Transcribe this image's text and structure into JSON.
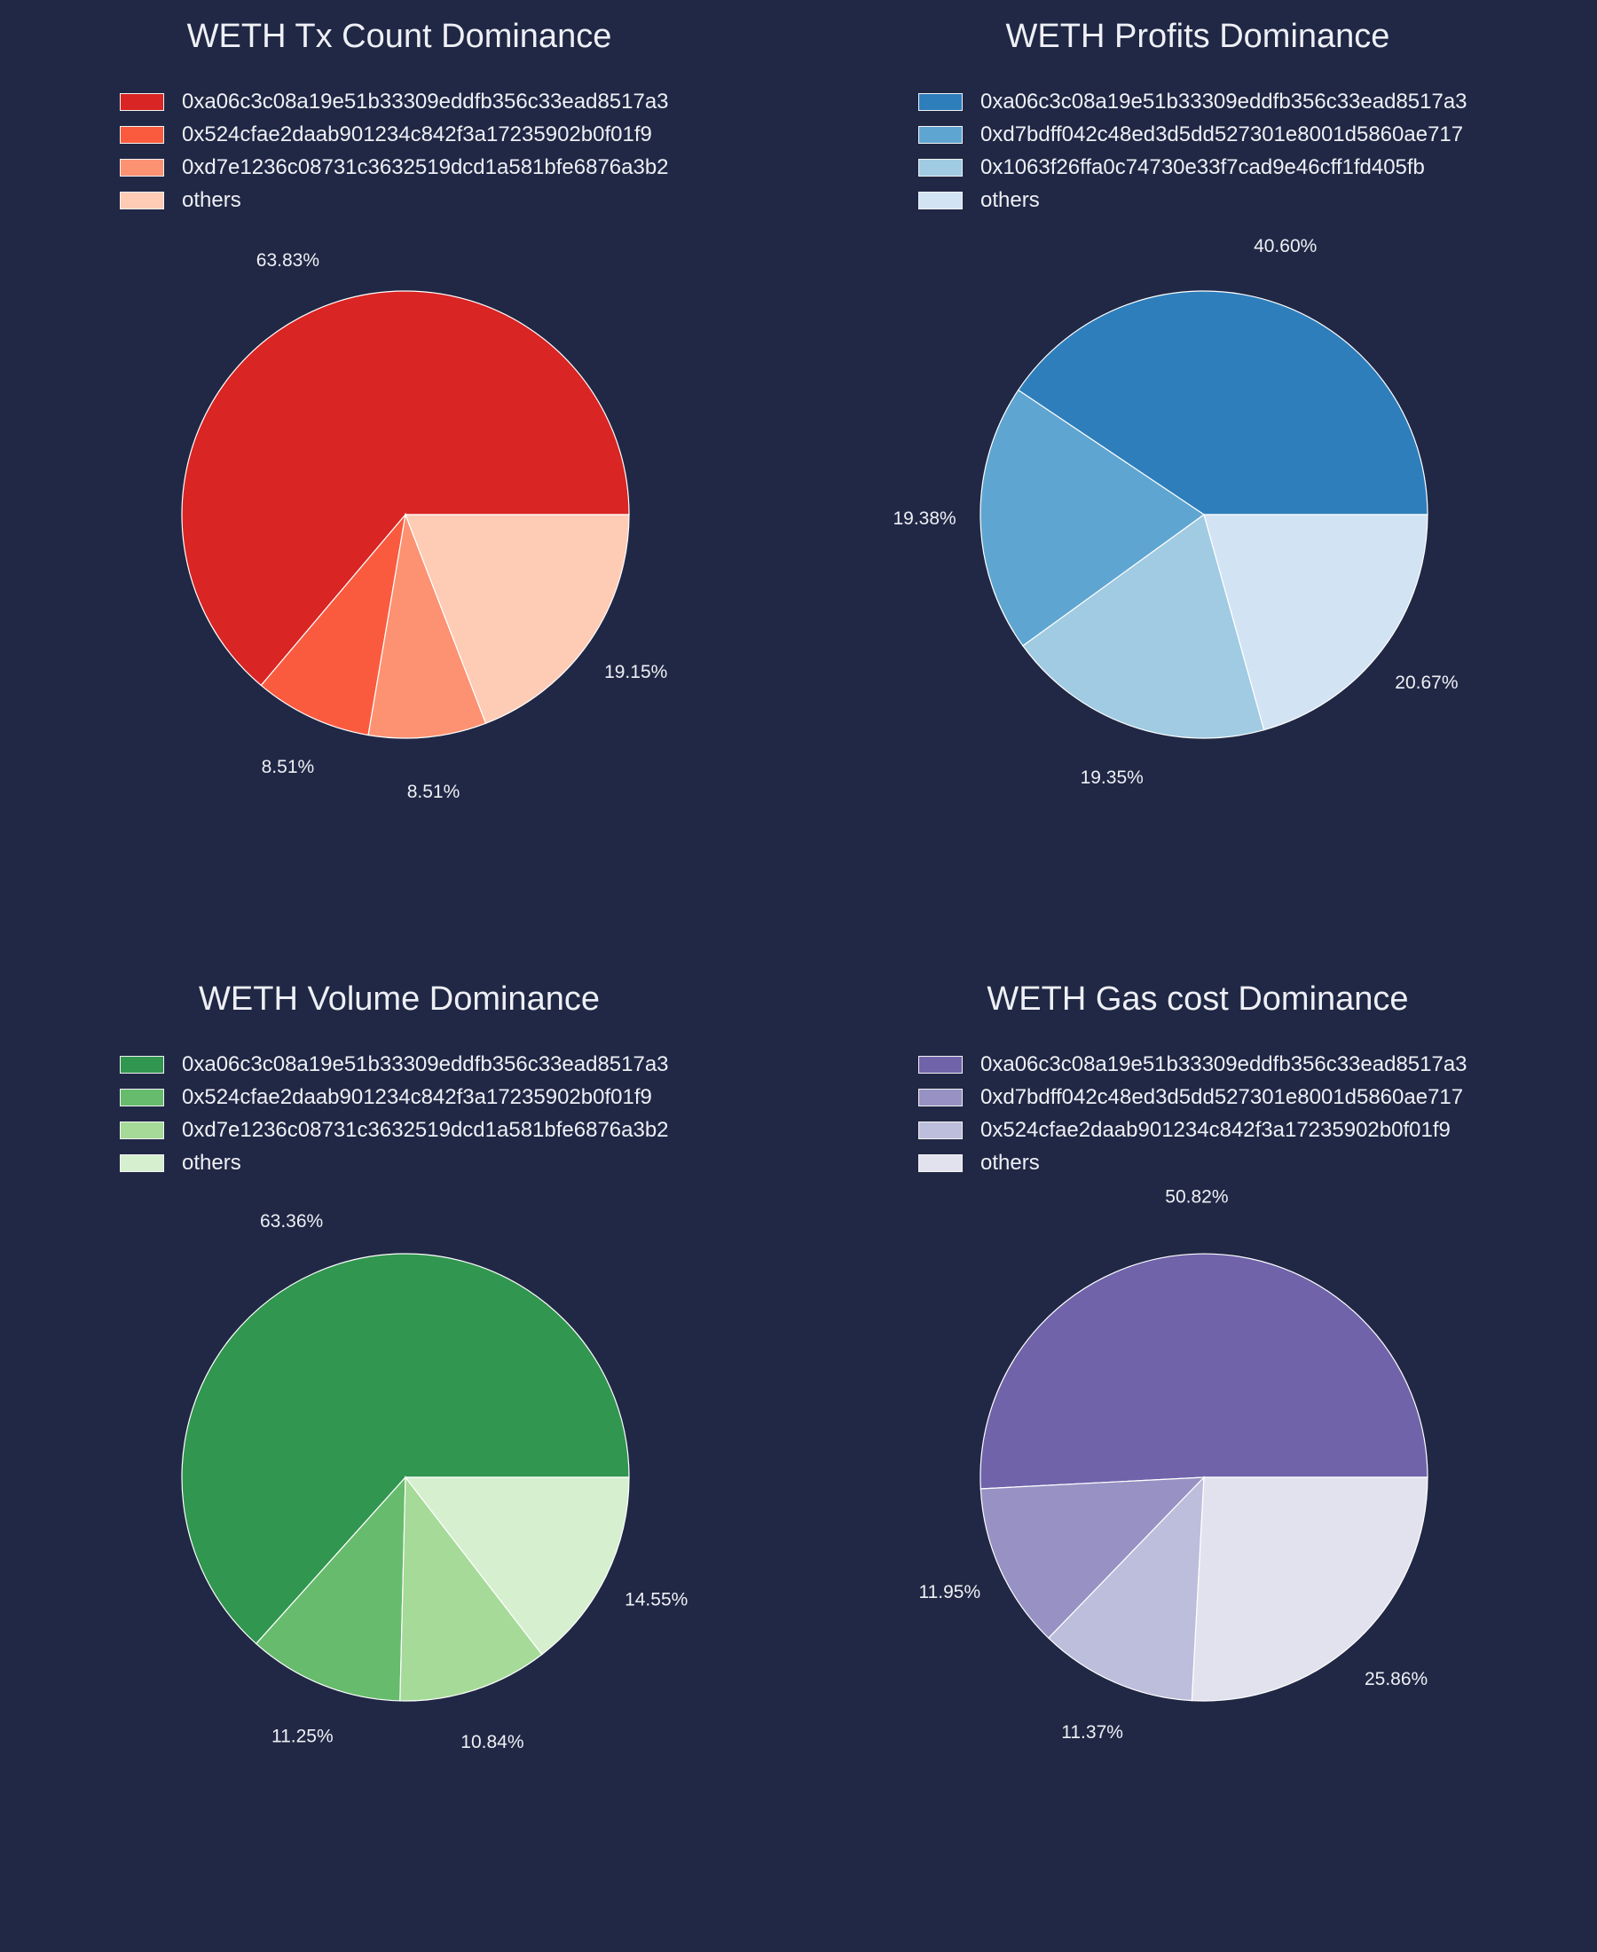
{
  "chart_data": [
    {
      "type": "pie",
      "title": "WETH Tx Count Dominance",
      "categories": [
        "0xa06c3c08a19e51b33309eddfb356c33ead8517a3",
        "0x524cfae2daab901234c842f3a17235902b0f01f9",
        "0xd7e1236c08731c3632519dcd1a581bfe6876a3b2",
        "others"
      ],
      "values": [
        63.83,
        8.51,
        8.51,
        19.15
      ],
      "labels": [
        "63.83%",
        "8.51%",
        "8.51%",
        "19.15%"
      ],
      "colors": [
        "#d92523",
        "#fa5b3f",
        "#fc9272",
        "#fecbb5"
      ],
      "legend_position": "top-left"
    },
    {
      "type": "pie",
      "title": "WETH Profits Dominance",
      "categories": [
        "0xa06c3c08a19e51b33309eddfb356c33ead8517a3",
        "0xd7bdff042c48ed3d5dd527301e8001d5860ae717",
        "0x1063f26ffa0c74730e33f7cad9e46cff1fd405fb",
        "others"
      ],
      "values": [
        40.6,
        19.38,
        19.35,
        20.67
      ],
      "labels": [
        "40.60%",
        "19.38%",
        "19.35%",
        "20.67%"
      ],
      "colors": [
        "#2e7ebc",
        "#5fa5d1",
        "#a0cbe2",
        "#d2e3f3"
      ],
      "legend_position": "top-left"
    },
    {
      "type": "pie",
      "title": "WETH Volume Dominance",
      "categories": [
        "0xa06c3c08a19e51b33309eddfb356c33ead8517a3",
        "0x524cfae2daab901234c842f3a17235902b0f01f9",
        "0xd7e1236c08731c3632519dcd1a581bfe6876a3b2",
        "others"
      ],
      "values": [
        63.36,
        11.25,
        10.84,
        14.55
      ],
      "labels": [
        "63.36%",
        "11.25%",
        "10.84%",
        "14.55%"
      ],
      "colors": [
        "#31964f",
        "#67bb6d",
        "#a5da98",
        "#d5efcf"
      ],
      "legend_position": "top-left"
    },
    {
      "type": "pie",
      "title": "WETH Gas cost Dominance",
      "categories": [
        "0xa06c3c08a19e51b33309eddfb356c33ead8517a3",
        "0xd7bdff042c48ed3d5dd527301e8001d5860ae717",
        "0x524cfae2daab901234c842f3a17235902b0f01f9",
        "others"
      ],
      "values": [
        50.82,
        11.95,
        11.37,
        25.86
      ],
      "labels": [
        "50.82%",
        "11.95%",
        "11.37%",
        "25.86%"
      ],
      "colors": [
        "#7063aa",
        "#9792c3",
        "#bdbddc",
        "#e2e2ef"
      ],
      "legend_position": "top-left"
    }
  ]
}
